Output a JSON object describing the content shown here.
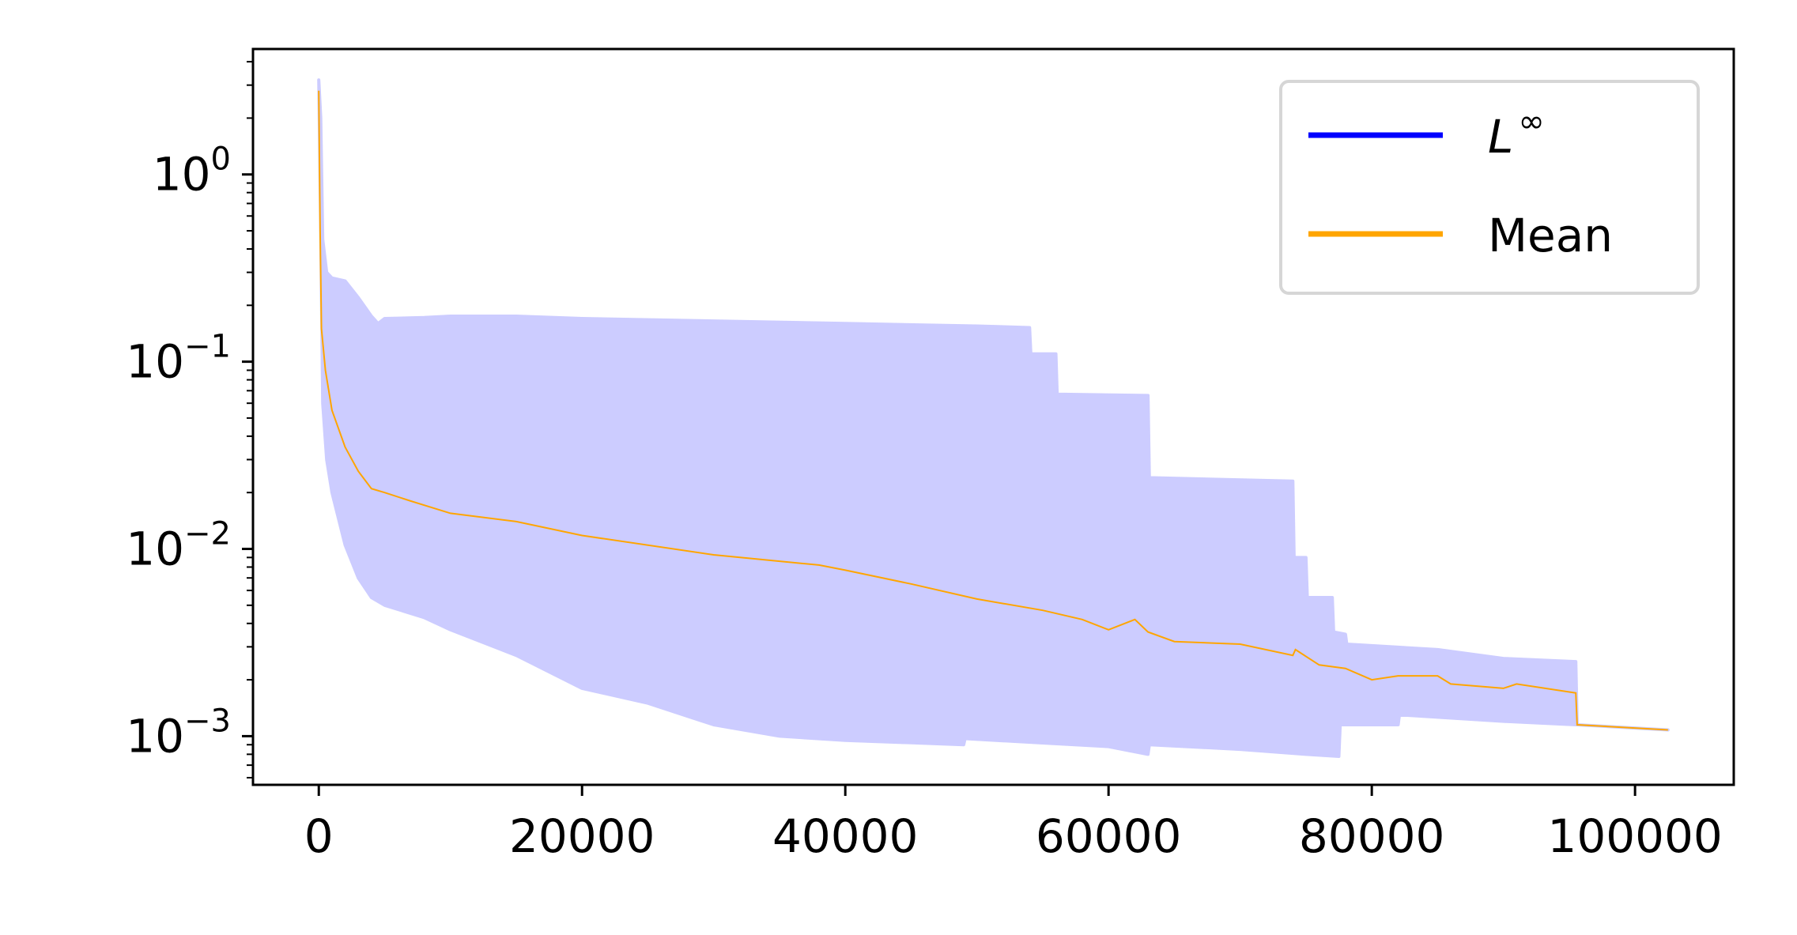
{
  "chart_data": {
    "type": "area",
    "title": "",
    "xlabel": "",
    "ylabel": "",
    "xlim": [
      -5000,
      107500
    ],
    "ylim_log10": [
      -3.26,
      0.67
    ],
    "yscale": "log",
    "grid": false,
    "legend_position": "top-right",
    "x_ticks": [
      {
        "value": 0,
        "label": "0"
      },
      {
        "value": 20000,
        "label": "20000"
      },
      {
        "value": 40000,
        "label": "40000"
      },
      {
        "value": 60000,
        "label": "60000"
      },
      {
        "value": 80000,
        "label": "80000"
      },
      {
        "value": 100000,
        "label": "100000"
      }
    ],
    "y_ticks": [
      {
        "exp": 0,
        "base": "10",
        "sup": "0"
      },
      {
        "exp": -1,
        "base": "10",
        "sup": "−1"
      },
      {
        "exp": -2,
        "base": "10",
        "sup": "−2"
      },
      {
        "exp": -3,
        "base": "10",
        "sup": "−3"
      }
    ],
    "legend": [
      {
        "label": "L",
        "sup": "∞",
        "italic": true,
        "color": "#0000ff"
      },
      {
        "label": "Mean",
        "sup": "",
        "italic": false,
        "color": "#ffa500"
      }
    ],
    "series": [
      {
        "name": "L∞ band upper",
        "color": "#ccccff",
        "x": [
          0,
          150,
          300,
          600,
          1000,
          2000,
          3000,
          4000,
          4500,
          5000,
          8000,
          10000,
          15000,
          20000,
          30000,
          40000,
          50000,
          54000,
          54100,
          56000,
          56100,
          63000,
          63100,
          74000,
          74100,
          75000,
          75100,
          77000,
          77100,
          78000,
          78100,
          85000,
          90000,
          95500,
          95600,
          102500
        ],
        "y": [
          3.2,
          2.0,
          0.45,
          0.3,
          0.28,
          0.27,
          0.22,
          0.175,
          0.16,
          0.17,
          0.172,
          0.175,
          0.175,
          0.17,
          0.165,
          0.16,
          0.155,
          0.152,
          0.11,
          0.11,
          0.067,
          0.066,
          0.024,
          0.023,
          0.009,
          0.009,
          0.0055,
          0.0055,
          0.0036,
          0.0035,
          0.0031,
          0.0029,
          0.0026,
          0.0025,
          0.00115,
          0.00108
        ]
      },
      {
        "name": "L∞ band lower",
        "color": "#ccccff",
        "x": [
          0,
          150,
          300,
          600,
          1000,
          2000,
          3000,
          4000,
          5000,
          8000,
          10000,
          15000,
          20000,
          25000,
          30000,
          35000,
          40000,
          49000,
          49100,
          55000,
          60000,
          63000,
          63100,
          70000,
          75000,
          77500,
          77600,
          82000,
          82100,
          90000,
          95500,
          95600,
          102500
        ],
        "y": [
          3.2,
          0.5,
          0.06,
          0.03,
          0.02,
          0.0105,
          0.007,
          0.0055,
          0.005,
          0.0043,
          0.0037,
          0.0027,
          0.0018,
          0.0015,
          0.00115,
          0.001,
          0.00095,
          0.0009,
          0.00097,
          0.00092,
          0.00088,
          0.0008,
          0.0009,
          0.00085,
          0.0008,
          0.00078,
          0.00115,
          0.00115,
          0.0013,
          0.0012,
          0.00115,
          0.00115,
          0.00108
        ]
      },
      {
        "name": "Mean",
        "color": "#ffa500",
        "x": [
          0,
          100,
          200,
          500,
          1000,
          2000,
          3000,
          4000,
          5000,
          7000,
          10000,
          15000,
          20000,
          30000,
          38000,
          40000,
          45000,
          50000,
          55000,
          58000,
          60000,
          62000,
          63000,
          65000,
          70000,
          74000,
          74200,
          76000,
          78000,
          80000,
          82000,
          85000,
          86000,
          90000,
          91000,
          95500,
          95600,
          102500
        ],
        "y": [
          2.8,
          0.5,
          0.15,
          0.09,
          0.055,
          0.035,
          0.026,
          0.021,
          0.02,
          0.018,
          0.0155,
          0.014,
          0.0118,
          0.0093,
          0.0082,
          0.0077,
          0.0065,
          0.0054,
          0.0047,
          0.0042,
          0.0037,
          0.0042,
          0.0036,
          0.0032,
          0.0031,
          0.0027,
          0.0029,
          0.0024,
          0.0023,
          0.002,
          0.0021,
          0.0021,
          0.0019,
          0.0018,
          0.0019,
          0.0017,
          0.00115,
          0.00108
        ]
      }
    ]
  }
}
